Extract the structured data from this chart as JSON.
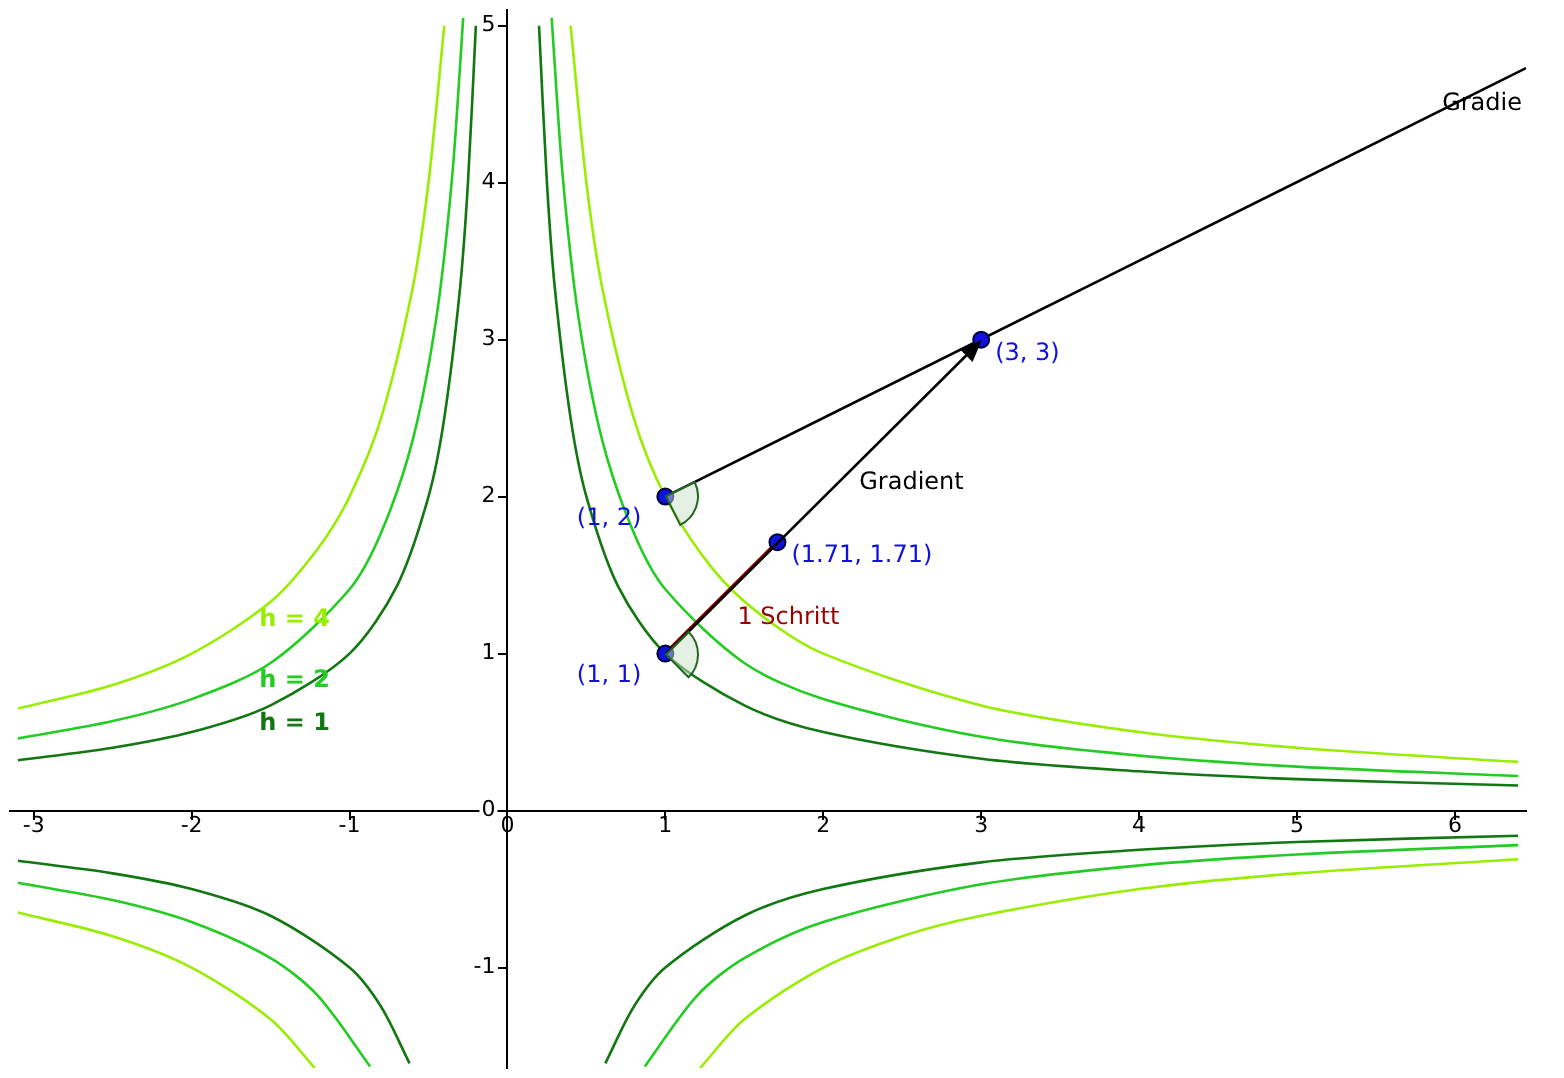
{
  "chart_data": {
    "type": "line",
    "xlim": [
      -3.15,
      6.45
    ],
    "ylim": [
      -1.64,
      5.1
    ],
    "xticks": [
      -3,
      -2,
      -1,
      0,
      1,
      2,
      3,
      4,
      5,
      6
    ],
    "yticks": [
      -1,
      0,
      1,
      2,
      3,
      4,
      5
    ],
    "grid": false,
    "legend": false,
    "series": [
      {
        "name": "h = 4",
        "color": "#99ee00",
        "x": [
          0.4,
          0.5,
          0.6,
          0.8,
          1,
          1.3,
          1.6,
          2,
          3,
          4,
          5,
          6.4,
          null,
          -3.1,
          -2.5,
          -2,
          -1.5,
          -1.2,
          -1,
          -0.8,
          -0.6,
          -0.5,
          -0.4,
          null,
          -3.1,
          -2.5,
          -2,
          -1.5,
          -1.22,
          null,
          1.22,
          1.5,
          2,
          2.5,
          3,
          4,
          5,
          6.4
        ],
        "values": [
          5,
          4,
          3.33,
          2.5,
          2,
          1.54,
          1.25,
          1,
          0.67,
          0.5,
          0.4,
          0.31,
          null,
          0.65,
          0.8,
          1,
          1.33,
          1.67,
          2,
          2.5,
          3.33,
          4,
          5,
          null,
          -0.65,
          -0.8,
          -1,
          -1.33,
          -1.64,
          null,
          -1.64,
          -1.33,
          -1,
          -0.8,
          -0.67,
          -0.5,
          -0.4,
          -0.31
        ]
      },
      {
        "name": "h = 2",
        "color": "#22cc22",
        "x": [
          0.28,
          0.35,
          0.45,
          0.6,
          0.8,
          1,
          1.5,
          2,
          3,
          4,
          5,
          6.4,
          null,
          -3.1,
          -2.5,
          -2,
          -1.5,
          -1,
          -0.8,
          -0.6,
          -0.45,
          -0.35,
          -0.28,
          null,
          -3.1,
          -2.5,
          -2,
          -1.5,
          -1.2,
          -0.87,
          null,
          0.87,
          1.2,
          1.5,
          2,
          3,
          4,
          5,
          6.4
        ],
        "values": [
          5.05,
          4.04,
          3.14,
          2.36,
          1.77,
          1.41,
          0.94,
          0.71,
          0.47,
          0.35,
          0.28,
          0.22,
          null,
          0.46,
          0.57,
          0.71,
          0.94,
          1.41,
          1.77,
          2.36,
          3.14,
          4.04,
          5.05,
          null,
          -0.46,
          -0.57,
          -0.71,
          -0.94,
          -1.18,
          -1.63,
          null,
          -1.63,
          -1.18,
          -0.94,
          -0.71,
          -0.47,
          -0.35,
          -0.28,
          -0.22
        ]
      },
      {
        "name": "h = 1",
        "color": "#117711",
        "x": [
          0.2,
          0.25,
          0.3,
          0.4,
          0.5,
          0.7,
          1,
          1.5,
          2,
          3,
          4,
          5,
          6.4,
          null,
          -3.1,
          -2.5,
          -2,
          -1.5,
          -1,
          -0.7,
          -0.5,
          -0.4,
          -0.3,
          -0.25,
          -0.2,
          null,
          -3.1,
          -2.5,
          -2,
          -1.5,
          -1,
          -0.8,
          -0.62,
          null,
          0.62,
          0.8,
          1,
          1.5,
          2,
          3,
          4,
          5,
          6.4
        ],
        "values": [
          5,
          4,
          3.33,
          2.5,
          2,
          1.43,
          1,
          0.67,
          0.5,
          0.33,
          0.25,
          0.2,
          0.16,
          null,
          0.32,
          0.4,
          0.5,
          0.67,
          1,
          1.43,
          2,
          2.5,
          3.33,
          4,
          5,
          null,
          -0.32,
          -0.4,
          -0.5,
          -0.67,
          -1,
          -1.25,
          -1.61,
          null,
          -1.61,
          -1.25,
          -1,
          -0.67,
          -0.5,
          -0.33,
          -0.25,
          -0.2,
          -0.16
        ]
      },
      {
        "name": "Gradie",
        "color": "#000000",
        "x": [
          1,
          6.45
        ],
        "values": [
          2,
          4.73
        ]
      },
      {
        "name": "1 Schritt",
        "color": "#990000",
        "x": [
          1,
          1.71
        ],
        "values": [
          1,
          1.71
        ]
      },
      {
        "type": "scatter",
        "color": "#1111dd",
        "x": [
          1,
          3,
          1.71,
          1
        ],
        "values": [
          2,
          3,
          1.71,
          1
        ],
        "value_labels": [
          "(1, 2)",
          "(3, 3)",
          "(1.71, 1.71)",
          "(1, 1)"
        ]
      }
    ],
    "annotations": [
      "Gradient"
    ]
  }
}
